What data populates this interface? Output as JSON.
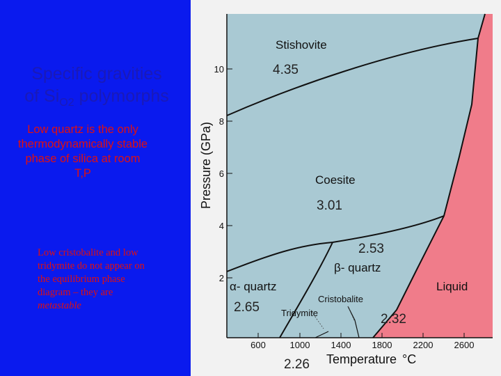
{
  "slide": {
    "title_line1": "Specific gravities",
    "title_line2_prefix": "of Si",
    "title_line2_sub": "O2",
    "title_line2_suffix": " polymorphs",
    "note_top": "Low quartz is the only thermodynamically stable phase of silica at room T,P",
    "note_bottom_main": "Low cristobalite and low tridymite do not appear on the equilibrium phase diagram – they are ",
    "note_bottom_italic": "metastable"
  },
  "diagram": {
    "y_axis_label": "Pressure (GPa)",
    "x_axis_label": "Temperature",
    "x_axis_unit": "°C",
    "y_ticks": [
      "2",
      "4",
      "6",
      "8",
      "10"
    ],
    "x_ticks": [
      "600",
      "1000",
      "1400",
      "1800",
      "2200",
      "2600"
    ],
    "phases": {
      "stishovite": "Stishovite",
      "coesite": "Coesite",
      "beta_quartz": "β- quartz",
      "alpha_quartz": "α- quartz",
      "cristobalite": "Cristobalite",
      "tridymite": "Tridymite",
      "liquid": "Liquid"
    },
    "specific_gravities": {
      "stishovite": "4.35",
      "coesite": "3.01",
      "beta_quartz": "2.53",
      "alpha_quartz": "2.65",
      "liquid": "2.32",
      "tridymite": "2.26"
    },
    "colors": {
      "solid_field": "#a9c9d3",
      "liquid_field": "#f07c8a",
      "left_panel": "#0a1aee",
      "title": "#1a1ab8",
      "note": "#e01010"
    }
  }
}
